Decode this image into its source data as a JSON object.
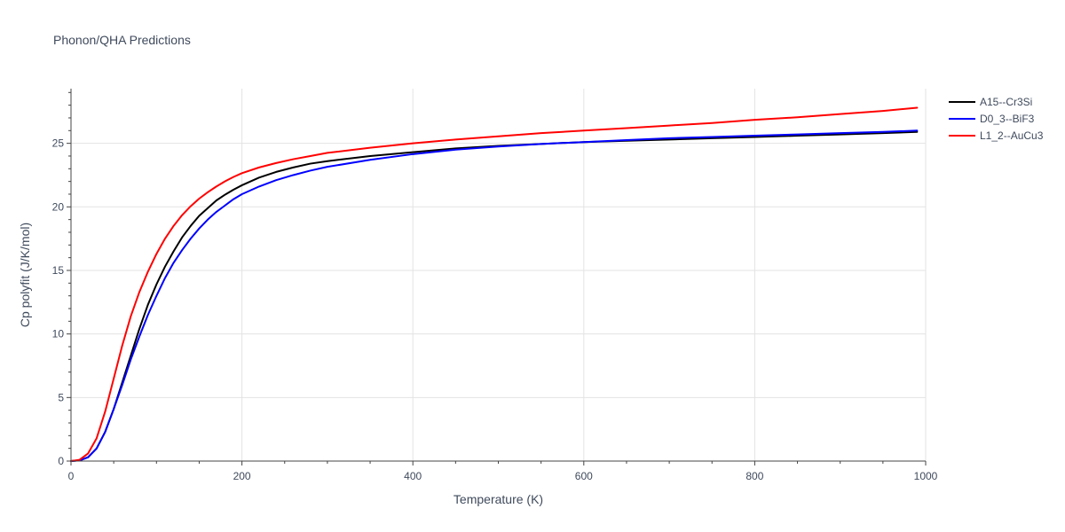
{
  "chart_data": {
    "type": "line",
    "title": "Phonon/QHA Predictions",
    "xlabel": "Temperature (K)",
    "ylabel": "Cp polyfit (J/K/mol)",
    "xlim": [
      0,
      1000
    ],
    "ylim": [
      0,
      29.3
    ],
    "x_ticks": [
      0,
      200,
      400,
      600,
      800,
      1000
    ],
    "y_ticks": [
      0,
      5,
      10,
      15,
      20,
      25
    ],
    "x_tick_labels": [
      "0",
      "200",
      "400",
      "600",
      "800",
      "1000"
    ],
    "y_tick_labels": [
      "0",
      "5",
      "10",
      "15",
      "20",
      "25"
    ],
    "grid": true,
    "legend_position": "top-right",
    "series": [
      {
        "name": "A15--Cr3Si",
        "color": "#000000",
        "x": [
          0,
          10,
          20,
          30,
          40,
          50,
          60,
          70,
          80,
          90,
          100,
          110,
          120,
          130,
          140,
          150,
          160,
          170,
          180,
          190,
          200,
          220,
          240,
          260,
          280,
          300,
          350,
          400,
          450,
          500,
          550,
          600,
          650,
          700,
          750,
          800,
          850,
          900,
          950,
          990
        ],
        "y": [
          0,
          0.05,
          0.3,
          1.0,
          2.3,
          4.1,
          6.2,
          8.3,
          10.4,
          12.3,
          13.9,
          15.3,
          16.5,
          17.6,
          18.5,
          19.3,
          19.9,
          20.5,
          20.95,
          21.35,
          21.7,
          22.3,
          22.75,
          23.1,
          23.4,
          23.6,
          24.0,
          24.3,
          24.6,
          24.8,
          24.95,
          25.1,
          25.2,
          25.3,
          25.4,
          25.5,
          25.6,
          25.7,
          25.8,
          25.9
        ]
      },
      {
        "name": "D0_3--BiF3",
        "color": "#0000ff",
        "x": [
          0,
          10,
          20,
          30,
          40,
          50,
          60,
          70,
          80,
          90,
          100,
          110,
          120,
          130,
          140,
          150,
          160,
          170,
          180,
          190,
          200,
          220,
          240,
          260,
          280,
          300,
          350,
          400,
          450,
          500,
          550,
          600,
          650,
          700,
          750,
          800,
          850,
          900,
          950,
          990
        ],
        "y": [
          0,
          0.05,
          0.3,
          1.0,
          2.3,
          4.1,
          6.0,
          8.0,
          9.8,
          11.5,
          13.0,
          14.4,
          15.6,
          16.6,
          17.5,
          18.3,
          19.0,
          19.6,
          20.1,
          20.6,
          21.0,
          21.6,
          22.1,
          22.5,
          22.85,
          23.15,
          23.7,
          24.15,
          24.5,
          24.75,
          24.95,
          25.1,
          25.25,
          25.4,
          25.5,
          25.6,
          25.7,
          25.8,
          25.9,
          26.0
        ]
      },
      {
        "name": "L1_2--AuCu3",
        "color": "#ff0000",
        "x": [
          0,
          10,
          20,
          30,
          40,
          50,
          60,
          70,
          80,
          90,
          100,
          110,
          120,
          130,
          140,
          150,
          160,
          170,
          180,
          190,
          200,
          220,
          240,
          260,
          280,
          300,
          350,
          400,
          450,
          500,
          550,
          600,
          650,
          700,
          750,
          800,
          850,
          900,
          950,
          990
        ],
        "y": [
          0,
          0.1,
          0.6,
          1.8,
          3.9,
          6.5,
          9.1,
          11.4,
          13.3,
          14.9,
          16.3,
          17.5,
          18.5,
          19.35,
          20.05,
          20.65,
          21.15,
          21.6,
          22.0,
          22.35,
          22.65,
          23.1,
          23.45,
          23.75,
          24.0,
          24.25,
          24.65,
          25.0,
          25.3,
          25.55,
          25.8,
          26.0,
          26.2,
          26.4,
          26.6,
          26.85,
          27.05,
          27.3,
          27.55,
          27.8
        ]
      }
    ]
  }
}
